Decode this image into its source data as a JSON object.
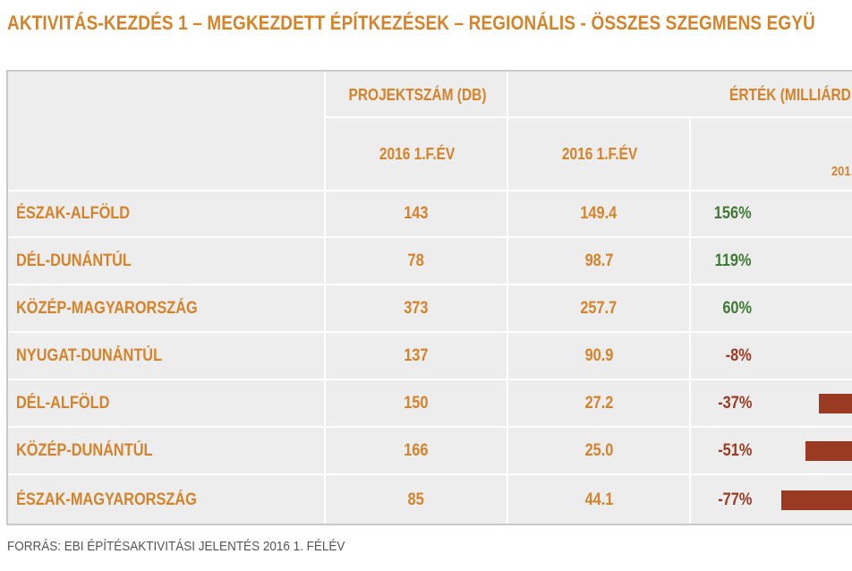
{
  "title": "AKTIVITÁS-KEZDÉS 1 – MEGKEZDETT ÉPÍTKEZÉSEK – REGIONÁLIS - ÖSSZES SZEGMENS EGYÜ",
  "headers": {
    "group_count": "PROJEKTSZÁM (DB)",
    "group_value": "ÉRTÉK (MILLIÁRD",
    "col_count_period": "2016 1.F.ÉV",
    "col_value_period": "2016 1.F.ÉV",
    "col_change_partial": "201"
  },
  "rows": [
    {
      "region": "ÉSZAK-ALFÖLD",
      "count": "143",
      "value": "149.4",
      "change": "156%",
      "change_num": 156,
      "color": "#3f7a35"
    },
    {
      "region": "DÉL-DUNÁNTÚL",
      "count": "78",
      "value": "98.7",
      "change": "119%",
      "change_num": 119,
      "color": "#3f7a35"
    },
    {
      "region": "KÖZÉP-MAGYARORSZÁG",
      "count": "373",
      "value": "257.7",
      "change": "60%",
      "change_num": 60,
      "color": "#3f7a35"
    },
    {
      "region": "NYUGAT-DUNÁNTÚL",
      "count": "137",
      "value": "90.9",
      "change": "-8%",
      "change_num": -8,
      "color": "#9b3a22"
    },
    {
      "region": "DÉL-ALFÖLD",
      "count": "150",
      "value": "27.2",
      "change": "-37%",
      "change_num": -37,
      "color": "#9b3a22"
    },
    {
      "region": "KÖZÉP-DUNÁNTÚL",
      "count": "166",
      "value": "25.0",
      "change": "-51%",
      "change_num": -51,
      "color": "#9b3a22"
    },
    {
      "region": "ÉSZAK-MAGYARORSZÁG",
      "count": "85",
      "value": "44.1",
      "change": "-77%",
      "change_num": -77,
      "color": "#9b3a22"
    }
  ],
  "source": "FORRÁS: EBI ÉPÍTÉSAKTIVITÁSI JELENTÉS 2016 1. FÉLÉV",
  "colors": {
    "accent": "#d5832a",
    "positive": "#3f7a35",
    "negative": "#9b3a22",
    "table_bg": "#ededed"
  }
}
